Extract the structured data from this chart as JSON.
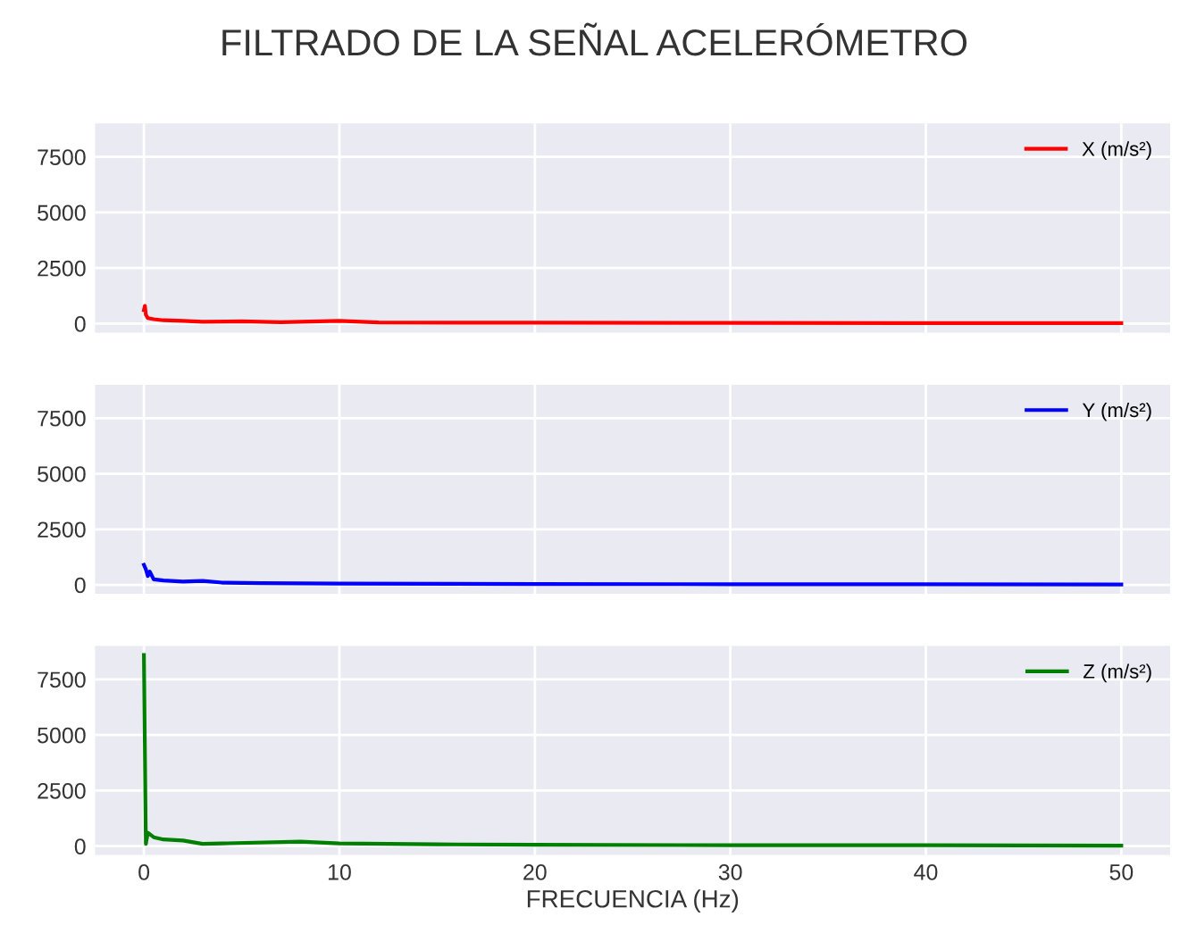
{
  "chart_data": [
    {
      "type": "line",
      "title": "FILTRADO DE LA SEÑAL ACELERÓMETRO",
      "x": [
        0,
        0.05,
        0.1,
        0.2,
        0.5,
        1,
        2,
        3,
        5,
        7,
        10,
        12,
        20,
        30,
        40,
        50
      ],
      "series": [
        {
          "name": "X (m/s²)",
          "color": "#ff0000",
          "values": [
            600,
            800,
            400,
            250,
            200,
            150,
            120,
            80,
            100,
            60,
            120,
            50,
            40,
            30,
            25,
            20
          ]
        }
      ],
      "xlim": [
        -2.5,
        52.5
      ],
      "ylim": [
        -400,
        9000
      ],
      "yticks": [
        0,
        2500,
        5000,
        7500
      ],
      "xticks": [
        0,
        10,
        20,
        30,
        40,
        50
      ],
      "tick_labels": "y",
      "grid": true,
      "legend": "top right"
    },
    {
      "type": "line",
      "x": [
        0,
        0.1,
        0.2,
        0.3,
        0.5,
        1,
        2,
        3,
        4,
        6,
        10,
        20,
        30,
        40,
        50
      ],
      "series": [
        {
          "name": "Y (m/s²)",
          "color": "#0000ff",
          "values": [
            900,
            700,
            400,
            600,
            250,
            200,
            150,
            180,
            100,
            80,
            60,
            40,
            30,
            30,
            20
          ]
        }
      ],
      "xlim": [
        -2.5,
        52.5
      ],
      "ylim": [
        -400,
        9000
      ],
      "yticks": [
        0,
        2500,
        5000,
        7500
      ],
      "xticks": [
        0,
        10,
        20,
        30,
        40,
        50
      ],
      "tick_labels": "y",
      "grid": true,
      "legend": "top right"
    },
    {
      "type": "line",
      "xlabel": "FRECUENCIA (Hz)",
      "x": [
        0,
        0.1,
        0.2,
        0.5,
        1,
        2,
        3,
        4,
        8,
        10,
        15,
        20,
        30,
        40,
        50
      ],
      "series": [
        {
          "name": "Z (m/s²)",
          "color": "#008000",
          "values": [
            8600,
            100,
            600,
            400,
            300,
            250,
            100,
            120,
            200,
            120,
            80,
            60,
            40,
            40,
            20
          ]
        }
      ],
      "xlim": [
        -2.5,
        52.5
      ],
      "ylim": [
        -400,
        9000
      ],
      "yticks": [
        0,
        2500,
        5000,
        7500
      ],
      "xticks": [
        0,
        10,
        20,
        30,
        40,
        50
      ],
      "grid": true,
      "legend": "top right"
    }
  ]
}
